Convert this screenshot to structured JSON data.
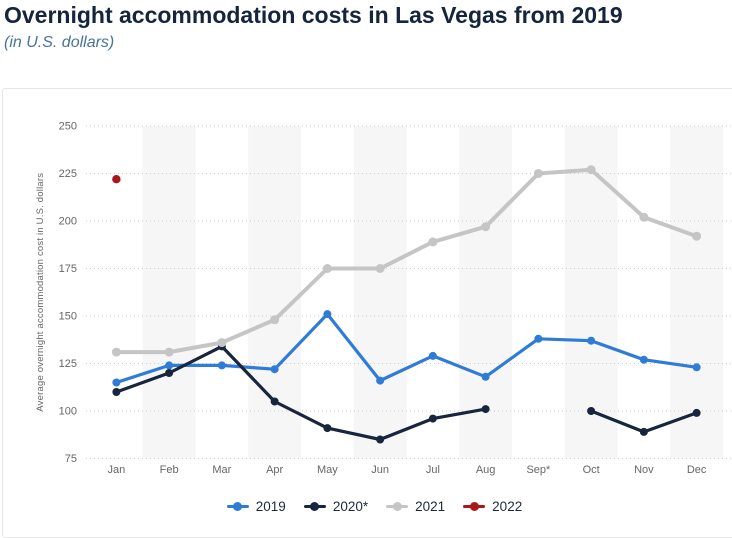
{
  "header": {
    "title": "Overnight accommodation costs in Las Vegas from 2019",
    "subtitle": "(in U.S. dollars)"
  },
  "chart_data": {
    "type": "line",
    "title": "Overnight accommodation costs in Las Vegas from 2019",
    "subtitle": "(in U.S. dollars)",
    "categories": [
      "Jan",
      "Feb",
      "Mar",
      "Apr",
      "May",
      "Jun",
      "Jul",
      "Aug",
      "Sep*",
      "Oct",
      "Nov",
      "Dec"
    ],
    "series": [
      {
        "name": "2019",
        "color": "#2e7cd7",
        "values": [
          115,
          124,
          124,
          122,
          151,
          116,
          129,
          118,
          138,
          137,
          127,
          123
        ]
      },
      {
        "name": "2020*",
        "color": "#17263e",
        "values": [
          110,
          120,
          134,
          105,
          91,
          85,
          96,
          101,
          null,
          100,
          89,
          99
        ]
      },
      {
        "name": "2021",
        "color": "#c5c5c5",
        "values": [
          131,
          131,
          136,
          148,
          175,
          175,
          189,
          197,
          225,
          227,
          202,
          192
        ]
      },
      {
        "name": "2022",
        "color": "#aa161b",
        "values": [
          222,
          null,
          null,
          null,
          null,
          null,
          null,
          null,
          null,
          null,
          null,
          null
        ]
      }
    ],
    "ylabel": "Average overnight accommodation cost in U.S. dollars",
    "yticks": [
      250,
      225,
      200,
      175,
      150,
      125,
      100,
      75
    ],
    "ylim": [
      75,
      250
    ],
    "grid": "horizontal-dotted",
    "plot_bands": "alternating-month-columns",
    "legend_position": "bottom"
  },
  "colors": {
    "band": "#f6f6f6",
    "grid": "#cccccc",
    "axis_text": "#666666",
    "title_text": "#15253d",
    "subtitle_text": "#47729e",
    "legend_text": "#1b2a3d",
    "card_border": "#e6e6e6"
  }
}
